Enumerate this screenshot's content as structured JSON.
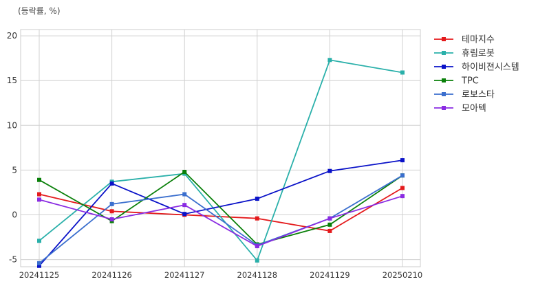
{
  "chart_data": {
    "type": "line",
    "unit_label": "(등락률, %)",
    "categories": [
      "20241125",
      "20241126",
      "20241127",
      "20241128",
      "20241129",
      "20250210"
    ],
    "ylim": [
      -5.8,
      20.7
    ],
    "y_ticks": [
      -5,
      0,
      5,
      10,
      15,
      20
    ],
    "grid": true,
    "legend_position": "outside-right",
    "series": [
      {
        "name": "테마지수",
        "color": "#e41a1c",
        "values": [
          2.3,
          0.4,
          0.0,
          -0.4,
          -1.8,
          3.0
        ]
      },
      {
        "name": "휴림로봇",
        "color": "#2ab0aa",
        "values": [
          -2.9,
          3.7,
          4.6,
          -5.1,
          17.3,
          15.9
        ]
      },
      {
        "name": "하이비젼시스템",
        "color": "#0a12c8",
        "values": [
          -5.7,
          3.5,
          0.1,
          1.8,
          4.9,
          6.1
        ]
      },
      {
        "name": "TPC",
        "color": "#0a800a",
        "values": [
          3.9,
          -0.7,
          4.8,
          -3.3,
          -1.1,
          4.4
        ]
      },
      {
        "name": "로보스타",
        "color": "#3b6fce",
        "values": [
          -5.4,
          1.2,
          2.3,
          -3.4,
          -0.4,
          4.4
        ]
      },
      {
        "name": "모아텍",
        "color": "#8a2be2",
        "values": [
          1.7,
          -0.5,
          1.1,
          -3.5,
          -0.4,
          2.1
        ]
      }
    ]
  }
}
